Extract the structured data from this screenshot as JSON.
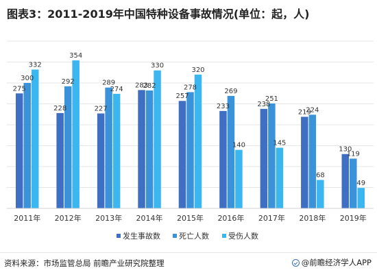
{
  "title": "图表3：2011-2019年中国特种设备事故情况(单位：起，人)",
  "source": "资料来源：市场监管总局 前瞻产业研究院整理",
  "brand": "@前瞻经济学人APP",
  "colors": {
    "series": [
      "#3f6fc2",
      "#3a92d8",
      "#3bb6ef"
    ],
    "grid": "#e6e6e6",
    "label": "#333333"
  },
  "chart_data": {
    "type": "bar",
    "categories": [
      "2011年",
      "2012年",
      "2013年",
      "2014年",
      "2015年",
      "2016年",
      "2017年",
      "2018年",
      "2019年"
    ],
    "series": [
      {
        "name": "发生事故数",
        "values": [
          275,
          228,
          227,
          283,
          257,
          233,
          238,
          219,
          130
        ]
      },
      {
        "name": "死亡人数",
        "values": [
          300,
          292,
          289,
          282,
          278,
          269,
          251,
          224,
          119
        ]
      },
      {
        "name": "受伤人数",
        "values": [
          332,
          354,
          274,
          330,
          320,
          140,
          145,
          68,
          49
        ]
      }
    ],
    "ylim": [
      0,
      400
    ],
    "gridlines": true,
    "legend_position": "bottom"
  }
}
